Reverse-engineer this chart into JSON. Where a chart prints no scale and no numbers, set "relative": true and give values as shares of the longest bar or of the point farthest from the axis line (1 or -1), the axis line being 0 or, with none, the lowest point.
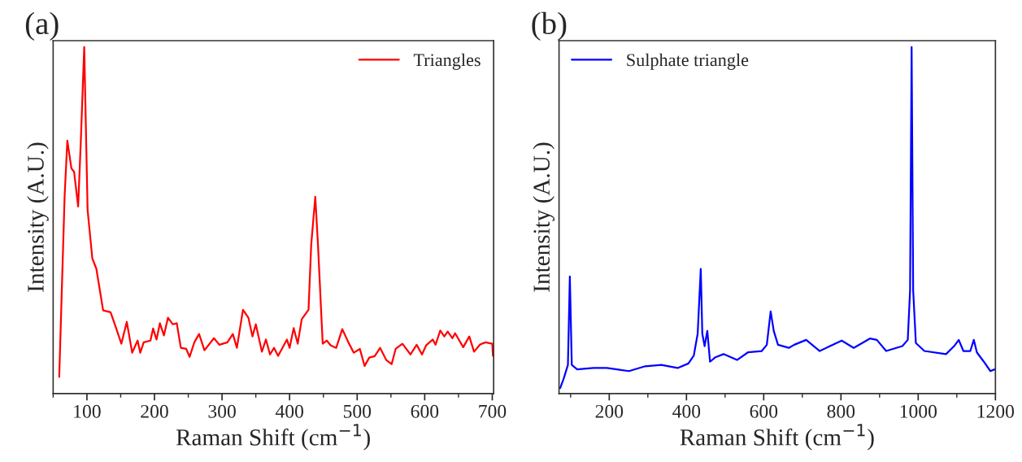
{
  "chart_data": [
    {
      "type": "line",
      "title": "(a)",
      "xlabel": "Raman Shift (cm$^{−1}$)",
      "ylabel": "Intensity (A.U.)",
      "relative": true,
      "legend": "top right",
      "tick_labels": "x",
      "xlim": [
        50,
        702
      ],
      "xticks": [
        {
          "value": 50,
          "label": null
        },
        100,
        {
          "value": 150,
          "label": null
        },
        200,
        {
          "value": 250,
          "label": null
        },
        300,
        {
          "value": 350,
          "label": null
        },
        400,
        {
          "value": 450,
          "label": null
        },
        500,
        {
          "value": 550,
          "label": null
        },
        600,
        {
          "value": 650,
          "label": null
        },
        700
      ],
      "series": [
        {
          "name": "Triangles",
          "color": "#ff0000",
          "x": [
            59,
            67,
            71,
            77,
            81,
            87,
            91,
            96,
            101,
            108,
            114,
            124,
            135,
            143,
            151,
            159,
            167,
            175,
            179,
            184,
            194,
            198,
            203,
            208,
            214,
            220,
            227,
            233,
            239,
            247,
            252,
            259,
            266,
            274,
            288,
            296,
            308,
            316,
            322,
            331,
            339,
            345,
            350,
            359,
            365,
            371,
            377,
            383,
            396,
            400,
            406,
            412,
            418,
            428,
            432,
            438,
            442,
            449,
            455,
            461,
            469,
            478,
            487,
            495,
            504,
            511,
            518,
            526,
            534,
            543,
            551,
            557,
            567,
            579,
            588,
            596,
            602,
            612,
            616,
            623,
            629,
            634,
            641,
            645,
            657,
            666,
            673,
            682,
            690,
            700,
            701
          ],
          "values": [
            0.048,
            0.57,
            0.73,
            0.65,
            0.64,
            0.54,
            0.73,
            1.0,
            0.53,
            0.39,
            0.36,
            0.24,
            0.235,
            0.19,
            0.144,
            0.207,
            0.118,
            0.153,
            0.118,
            0.148,
            0.153,
            0.188,
            0.156,
            0.203,
            0.168,
            0.219,
            0.2,
            0.203,
            0.132,
            0.129,
            0.106,
            0.148,
            0.172,
            0.125,
            0.16,
            0.141,
            0.148,
            0.172,
            0.132,
            0.242,
            0.219,
            0.165,
            0.2,
            0.121,
            0.156,
            0.113,
            0.132,
            0.109,
            0.156,
            0.132,
            0.189,
            0.144,
            0.215,
            0.242,
            0.43,
            0.568,
            0.43,
            0.144,
            0.153,
            0.139,
            0.132,
            0.186,
            0.148,
            0.118,
            0.129,
            0.08,
            0.104,
            0.108,
            0.132,
            0.097,
            0.085,
            0.129,
            0.144,
            0.113,
            0.141,
            0.113,
            0.139,
            0.156,
            0.141,
            0.182,
            0.165,
            0.179,
            0.16,
            0.174,
            0.134,
            0.165,
            0.121,
            0.142,
            0.148,
            0.144,
            0.109
          ]
        }
      ]
    },
    {
      "type": "line",
      "title": "(b)",
      "xlabel": "Raman Shift (cm$^{−1}$)",
      "ylabel": "Intensity (A.U.)",
      "relative": true,
      "legend": "top left",
      "tick_labels": "x",
      "xlim": [
        70,
        1200
      ],
      "xticks": [
        {
          "value": 100,
          "label": null
        },
        200,
        {
          "value": 300,
          "label": null
        },
        400,
        {
          "value": 500,
          "label": null
        },
        600,
        {
          "value": 700,
          "label": null
        },
        800,
        {
          "value": 900,
          "label": null
        },
        1000,
        {
          "value": 1100,
          "label": null
        },
        1200
      ],
      "series": [
        {
          "name": "Sulphate triangle",
          "color": "#0000ff",
          "x": [
            73,
            82,
            93,
            98,
            103,
            117,
            159,
            194,
            251,
            293,
            335,
            377,
            405,
            419,
            429,
            437,
            441,
            447,
            454,
            461,
            475,
            496,
            531,
            559,
            595,
            608,
            618,
            626,
            637,
            665,
            679,
            710,
            745,
            802,
            833,
            875,
            893,
            917,
            959,
            973,
            979,
            983,
            987,
            994,
            1016,
            1072,
            1093,
            1105,
            1117,
            1135,
            1144,
            1152,
            1170,
            1187,
            1198
          ],
          "values": [
            0.016,
            0.043,
            0.083,
            0.338,
            0.083,
            0.07,
            0.074,
            0.074,
            0.065,
            0.079,
            0.083,
            0.074,
            0.087,
            0.11,
            0.173,
            0.36,
            0.173,
            0.137,
            0.181,
            0.092,
            0.105,
            0.114,
            0.097,
            0.119,
            0.123,
            0.141,
            0.237,
            0.181,
            0.141,
            0.132,
            0.141,
            0.155,
            0.123,
            0.153,
            0.132,
            0.159,
            0.155,
            0.123,
            0.137,
            0.155,
            0.298,
            1.0,
            0.298,
            0.146,
            0.123,
            0.114,
            0.137,
            0.155,
            0.123,
            0.123,
            0.155,
            0.119,
            0.092,
            0.065,
            0.07
          ]
        }
      ]
    }
  ]
}
